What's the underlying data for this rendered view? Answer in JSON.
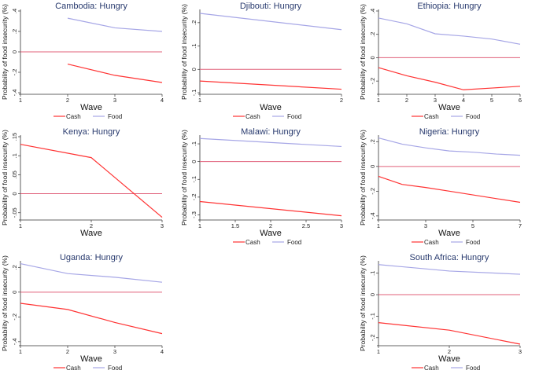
{
  "colors": {
    "cash": "#ff3333",
    "food": "#a6a6e6",
    "zero": "#e0607a",
    "title": "#283a6e",
    "axis": "#333333"
  },
  "common": {
    "ylabel": "Probability of food insecurity (%)",
    "xlabel": "Wave",
    "legend": [
      "Cash",
      "Food"
    ]
  },
  "chart_data": [
    {
      "type": "line",
      "title": "Cambodia: Hungry",
      "xlabel": "Wave",
      "ylabel": "Probability of food insecurity (%)",
      "xlim": [
        1,
        4
      ],
      "xticks": [
        1,
        2,
        3,
        4
      ],
      "ylim": [
        -0.4,
        0.4
      ],
      "yticks": [
        -0.4,
        -0.2,
        0,
        0.2,
        0.4
      ],
      "ytick_labels": [
        "-.4",
        "-.2",
        "0",
        ".2",
        ".4"
      ],
      "legend": true,
      "series": [
        {
          "name": "Cash",
          "x": [
            2,
            3,
            4
          ],
          "y": [
            -0.12,
            -0.23,
            -0.3
          ]
        },
        {
          "name": "Food",
          "x": [
            2,
            3,
            4
          ],
          "y": [
            0.33,
            0.235,
            0.2
          ]
        }
      ]
    },
    {
      "type": "line",
      "title": "Djibouti: Hungry",
      "xlabel": "Wave",
      "ylabel": "Probability of food insecurity (%)",
      "xlim": [
        1,
        2
      ],
      "xticks": [
        1,
        2
      ],
      "ylim": [
        -0.1,
        0.25
      ],
      "yticks": [
        -0.1,
        0,
        0.1,
        0.2
      ],
      "ytick_labels": [
        "-.1",
        "0",
        ".1",
        ".2"
      ],
      "legend": true,
      "series": [
        {
          "name": "Cash",
          "x": [
            1,
            2
          ],
          "y": [
            -0.05,
            -0.085
          ]
        },
        {
          "name": "Food",
          "x": [
            1,
            2
          ],
          "y": [
            0.24,
            0.17
          ]
        }
      ]
    },
    {
      "type": "line",
      "title": "Ethiopia: Hungry",
      "xlabel": "Wave",
      "ylabel": "Probability of food insecurity (%)",
      "xlim": [
        1,
        6
      ],
      "xticks": [
        1,
        2,
        3,
        4,
        5,
        6
      ],
      "ylim": [
        -0.3,
        0.4
      ],
      "yticks": [
        -0.2,
        0,
        0.2,
        0.4
      ],
      "ytick_labels": [
        "-.2",
        "0",
        ".2",
        ".4"
      ],
      "legend": true,
      "series": [
        {
          "name": "Cash",
          "x": [
            1,
            2,
            3,
            4,
            5,
            6
          ],
          "y": [
            -0.085,
            -0.155,
            -0.21,
            -0.275,
            -0.26,
            -0.245
          ]
        },
        {
          "name": "Food",
          "x": [
            1,
            2,
            3,
            4,
            5,
            6
          ],
          "y": [
            0.34,
            0.29,
            0.205,
            0.185,
            0.16,
            0.115
          ]
        }
      ]
    },
    {
      "type": "line",
      "title": "Kenya: Hungry",
      "xlabel": "Wave",
      "ylabel": "Probability of food insecurity (%)",
      "xlim": [
        1,
        3
      ],
      "xticks": [
        1,
        2,
        3
      ],
      "ylim": [
        -0.065,
        0.15
      ],
      "yticks": [
        -0.05,
        0,
        0.05,
        0.1,
        0.15
      ],
      "ytick_labels": [
        "-.05",
        "0",
        ".05",
        ".1",
        ".15"
      ],
      "legend": false,
      "series": [
        {
          "name": "Cash",
          "x": [
            1,
            2,
            3
          ],
          "y": [
            0.13,
            0.095,
            -0.062
          ]
        }
      ]
    },
    {
      "type": "line",
      "title": "Malawi: Hungry",
      "xlabel": "Wave",
      "ylabel": "Probability of food insecurity (%)",
      "xlim": [
        1,
        3
      ],
      "xticks": [
        1,
        1.5,
        2,
        2.5,
        3
      ],
      "ylim": [
        -0.32,
        0.14
      ],
      "yticks": [
        -0.3,
        -0.2,
        -0.1,
        0,
        0.1
      ],
      "ytick_labels": [
        "-.3",
        "-.2",
        "-.1",
        "0",
        ".1"
      ],
      "legend": true,
      "series": [
        {
          "name": "Cash",
          "x": [
            1,
            3
          ],
          "y": [
            -0.225,
            -0.305
          ]
        },
        {
          "name": "Food",
          "x": [
            1,
            3
          ],
          "y": [
            0.13,
            0.085
          ]
        }
      ]
    },
    {
      "type": "line",
      "title": "Nigeria: Hungry",
      "xlabel": "Wave",
      "ylabel": "Probability of food insecurity (%)",
      "xlim": [
        1,
        7
      ],
      "xticks": [
        1,
        3,
        5,
        7
      ],
      "ylim": [
        -0.42,
        0.24
      ],
      "yticks": [
        -0.4,
        -0.2,
        0,
        0.2
      ],
      "ytick_labels": [
        "-.4",
        "-.2",
        "0",
        ".2"
      ],
      "legend": true,
      "series": [
        {
          "name": "Cash",
          "x": [
            1,
            2,
            3,
            4,
            5,
            6,
            7
          ],
          "y": [
            -0.08,
            -0.145,
            -0.17,
            -0.2,
            -0.23,
            -0.26,
            -0.29
          ]
        },
        {
          "name": "Food",
          "x": [
            1,
            2,
            3,
            4,
            5,
            6,
            7
          ],
          "y": [
            0.23,
            0.18,
            0.15,
            0.125,
            0.115,
            0.1,
            0.09
          ]
        }
      ]
    },
    {
      "type": "line",
      "title": "Uganda: Hungry",
      "xlabel": "Wave",
      "ylabel": "Probability of food insecurity (%)",
      "xlim": [
        1,
        4
      ],
      "xticks": [
        1,
        2,
        3,
        4
      ],
      "ylim": [
        -0.42,
        0.24
      ],
      "yticks": [
        -0.4,
        -0.2,
        0,
        0.2
      ],
      "ytick_labels": [
        "-.4",
        "-.2",
        "0",
        ".2"
      ],
      "legend": true,
      "series": [
        {
          "name": "Cash",
          "x": [
            1,
            2,
            3,
            4
          ],
          "y": [
            -0.09,
            -0.14,
            -0.245,
            -0.335
          ]
        },
        {
          "name": "Food",
          "x": [
            1,
            2,
            3,
            4
          ],
          "y": [
            0.23,
            0.15,
            0.12,
            0.08
          ]
        }
      ]
    },
    {
      "type": "line",
      "title": "South Africa: Hungry",
      "xlabel": "Wave",
      "ylabel": "Probability of food insecurity (%)",
      "xlim": [
        1,
        3
      ],
      "xticks": [
        1,
        2,
        3
      ],
      "ylim": [
        -0.23,
        0.15
      ],
      "yticks": [
        -0.2,
        -0.1,
        0,
        0.1
      ],
      "ytick_labels": [
        "-.2",
        "-.1",
        "0",
        ".1"
      ],
      "legend": true,
      "series": [
        {
          "name": "Cash",
          "x": [
            1,
            2,
            3
          ],
          "y": [
            -0.13,
            -0.165,
            -0.23
          ]
        },
        {
          "name": "Food",
          "x": [
            1,
            2,
            3
          ],
          "y": [
            0.14,
            0.11,
            0.095
          ]
        }
      ]
    }
  ]
}
